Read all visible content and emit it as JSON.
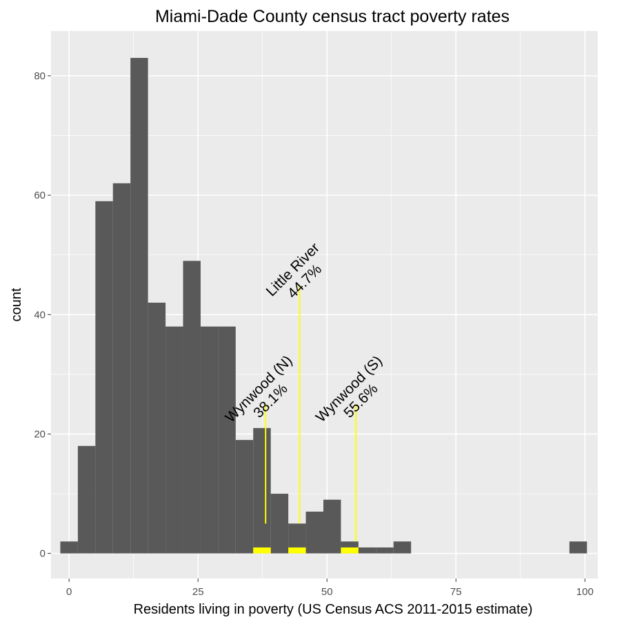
{
  "chart_data": {
    "type": "histogram",
    "title": "Miami-Dade County census tract poverty rates",
    "xlabel": "Residents living in poverty (US Census ACS 2011-2015 estimate)",
    "ylabel": "count",
    "xlim": [
      -3.5,
      102.5
    ],
    "ylim": [
      -4.2,
      87.5
    ],
    "xticks": [
      0,
      25,
      50,
      75,
      100
    ],
    "yticks": [
      0,
      20,
      40,
      60,
      80
    ],
    "grid": true,
    "bin_width": 3.4,
    "bins": [
      {
        "x0": -1.7,
        "x1": 1.7,
        "count": 2
      },
      {
        "x0": 1.7,
        "x1": 5.1,
        "count": 18
      },
      {
        "x0": 5.1,
        "x1": 8.5,
        "count": 59
      },
      {
        "x0": 8.5,
        "x1": 11.9,
        "count": 62
      },
      {
        "x0": 11.9,
        "x1": 15.3,
        "count": 83
      },
      {
        "x0": 15.3,
        "x1": 18.7,
        "count": 42
      },
      {
        "x0": 18.7,
        "x1": 22.1,
        "count": 38
      },
      {
        "x0": 22.1,
        "x1": 25.5,
        "count": 49
      },
      {
        "x0": 25.5,
        "x1": 28.9,
        "count": 38
      },
      {
        "x0": 28.9,
        "x1": 32.3,
        "count": 38
      },
      {
        "x0": 32.3,
        "x1": 35.7,
        "count": 19
      },
      {
        "x0": 35.7,
        "x1": 39.1,
        "count": 21
      },
      {
        "x0": 39.1,
        "x1": 42.5,
        "count": 10
      },
      {
        "x0": 42.5,
        "x1": 45.9,
        "count": 5
      },
      {
        "x0": 45.9,
        "x1": 49.3,
        "count": 7
      },
      {
        "x0": 49.3,
        "x1": 52.7,
        "count": 9
      },
      {
        "x0": 52.7,
        "x1": 56.1,
        "count": 2
      },
      {
        "x0": 56.1,
        "x1": 59.5,
        "count": 1
      },
      {
        "x0": 59.5,
        "x1": 62.9,
        "count": 1
      },
      {
        "x0": 62.9,
        "x1": 66.3,
        "count": 2
      },
      {
        "x0": 97.0,
        "x1": 100.4,
        "count": 2
      }
    ],
    "highlight_bins": [
      {
        "x0": 35.7,
        "x1": 39.1,
        "count": 1
      },
      {
        "x0": 42.5,
        "x1": 45.9,
        "count": 1
      },
      {
        "x0": 52.7,
        "x1": 56.1,
        "count": 1
      }
    ],
    "markers": [
      {
        "line1": "Wynwood (N)",
        "line2": "38.1%",
        "x": 38.1,
        "y_from": 5,
        "y_to": 25
      },
      {
        "line1": "Little River",
        "line2": "44.7%",
        "x": 44.7,
        "y_from": 5,
        "y_to": 45
      },
      {
        "line1": "Wynwood (S)",
        "line2": "55.6%",
        "x": 55.6,
        "y_from": 2,
        "y_to": 25
      }
    ],
    "colors": {
      "bar": "#595959",
      "highlight": "#ffff00",
      "marker_line": "#ffff00",
      "panel": "#ebebeb",
      "grid": "#ffffff"
    }
  }
}
